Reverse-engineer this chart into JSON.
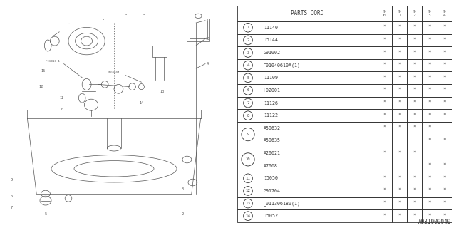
{
  "bg_color": "#ffffff",
  "line_color": "#555555",
  "table_color": "#333333",
  "rows": [
    {
      "num": "1",
      "part": "11140",
      "marks": [
        1,
        1,
        1,
        1,
        1
      ],
      "circled_b": false,
      "merged": false
    },
    {
      "num": "2",
      "part": "15144",
      "marks": [
        1,
        1,
        1,
        1,
        1
      ],
      "circled_b": false,
      "merged": false
    },
    {
      "num": "3",
      "part": "G91002",
      "marks": [
        1,
        1,
        1,
        1,
        1
      ],
      "circled_b": false,
      "merged": false
    },
    {
      "num": "4",
      "part": "01040610A(1)",
      "marks": [
        1,
        1,
        1,
        1,
        1
      ],
      "circled_b": true,
      "merged": false
    },
    {
      "num": "5",
      "part": "11109",
      "marks": [
        1,
        1,
        1,
        1,
        1
      ],
      "circled_b": false,
      "merged": false
    },
    {
      "num": "6",
      "part": "H02001",
      "marks": [
        1,
        1,
        1,
        1,
        1
      ],
      "circled_b": false,
      "merged": false
    },
    {
      "num": "7",
      "part": "11126",
      "marks": [
        1,
        1,
        1,
        1,
        1
      ],
      "circled_b": false,
      "merged": false
    },
    {
      "num": "8",
      "part": "11122",
      "marks": [
        1,
        1,
        1,
        1,
        1
      ],
      "circled_b": false,
      "merged": false
    },
    {
      "num": "9",
      "part": "A50632",
      "marks": [
        1,
        1,
        1,
        1,
        0
      ],
      "circled_b": false,
      "merged": true,
      "merge_part2": "A50635",
      "marks2": [
        0,
        0,
        0,
        1,
        1
      ]
    },
    {
      "num": "10",
      "part": "A20621",
      "marks": [
        1,
        1,
        1,
        0,
        0
      ],
      "circled_b": false,
      "merged": true,
      "merge_part2": "A7068",
      "marks2": [
        0,
        0,
        0,
        1,
        1
      ]
    },
    {
      "num": "11",
      "part": "15050",
      "marks": [
        1,
        1,
        1,
        1,
        1
      ],
      "circled_b": false,
      "merged": false
    },
    {
      "num": "12",
      "part": "G91704",
      "marks": [
        1,
        1,
        1,
        1,
        1
      ],
      "circled_b": false,
      "merged": false
    },
    {
      "num": "13",
      "part": "011306180(1)",
      "marks": [
        1,
        1,
        1,
        1,
        1
      ],
      "circled_b": true,
      "merged": false
    },
    {
      "num": "14",
      "part": "15052",
      "marks": [
        1,
        1,
        1,
        1,
        1
      ],
      "circled_b": false,
      "merged": false
    }
  ],
  "years": [
    "9\n0",
    "9\n1",
    "9\n2",
    "9\n3",
    "9\n4"
  ],
  "footer": "A031000040"
}
